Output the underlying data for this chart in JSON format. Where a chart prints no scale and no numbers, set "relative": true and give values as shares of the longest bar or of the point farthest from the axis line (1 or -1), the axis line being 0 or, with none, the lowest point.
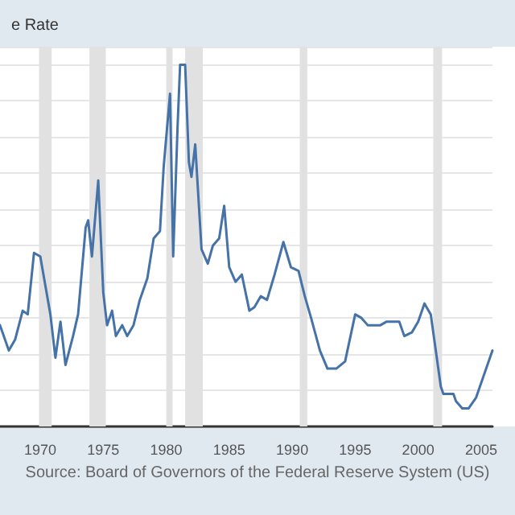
{
  "chart_data": {
    "type": "line",
    "title": "e Rate",
    "annotations": [
      "Source: Board of Governors of the Federal Reserve System (US)"
    ],
    "relative": true,
    "grid": "y",
    "marker": "none",
    "line_style": "solid",
    "xlim": [
      1966.8,
      2005.9
    ],
    "xticks": [
      1970,
      1975,
      1980,
      1985,
      1990,
      1995,
      2000,
      2005
    ],
    "bands": [
      {
        "axis": "x",
        "from": 1969.9,
        "to": 1970.9,
        "color": "#e1e1e1"
      },
      {
        "axis": "x",
        "from": 1973.9,
        "to": 1975.2,
        "color": "#e1e1e1"
      },
      {
        "axis": "x",
        "from": 1980.0,
        "to": 1980.5,
        "color": "#e1e1e1"
      },
      {
        "axis": "x",
        "from": 1981.5,
        "to": 1982.9,
        "color": "#e1e1e1"
      },
      {
        "axis": "x",
        "from": 1990.6,
        "to": 1991.2,
        "color": "#e1e1e1"
      },
      {
        "axis": "x",
        "from": 2001.2,
        "to": 2001.9,
        "color": "#e1e1e1"
      }
    ],
    "series": [
      {
        "color": "#4572a7",
        "x": [
          1966.8,
          1967.5,
          1968.0,
          1968.6,
          1969.0,
          1969.5,
          1970.0,
          1970.3,
          1970.8,
          1971.2,
          1971.6,
          1972.0,
          1972.6,
          1973.0,
          1973.6,
          1973.8,
          1974.1,
          1974.6,
          1975.0,
          1975.3,
          1975.7,
          1976.0,
          1976.5,
          1976.9,
          1977.4,
          1977.9,
          1978.5,
          1979.0,
          1979.5,
          1979.8,
          1980.3,
          1980.55,
          1980.9,
          1981.1,
          1981.5,
          1981.8,
          1982.0,
          1982.3,
          1982.8,
          1983.3,
          1983.7,
          1984.2,
          1984.6,
          1985.0,
          1985.5,
          1986.0,
          1986.6,
          1987.0,
          1987.5,
          1988.0,
          1988.6,
          1989.3,
          1989.9,
          1990.5,
          1991.0,
          1991.5,
          1992.2,
          1992.8,
          1993.5,
          1994.2,
          1995.0,
          1995.5,
          1996.0,
          1997.0,
          1997.5,
          1998.5,
          1998.9,
          1999.5,
          2000.0,
          2000.5,
          2001.0,
          2001.8,
          2002.0,
          2002.8,
          2003.0,
          2003.5,
          2004.0,
          2004.6,
          2005.5,
          2005.9
        ],
        "values": [
          0.28,
          0.21,
          0.24,
          0.32,
          0.31,
          0.48,
          0.47,
          0.41,
          0.31,
          0.19,
          0.29,
          0.17,
          0.25,
          0.31,
          0.55,
          0.57,
          0.47,
          0.68,
          0.37,
          0.28,
          0.32,
          0.25,
          0.28,
          0.25,
          0.28,
          0.35,
          0.41,
          0.52,
          0.54,
          0.72,
          0.92,
          0.47,
          0.83,
          1,
          1,
          0.73,
          0.69,
          0.78,
          0.49,
          0.45,
          0.5,
          0.52,
          0.61,
          0.44,
          0.4,
          0.42,
          0.32,
          0.33,
          0.36,
          0.35,
          0.42,
          0.51,
          0.44,
          0.43,
          0.36,
          0.3,
          0.21,
          0.16,
          0.16,
          0.18,
          0.31,
          0.3,
          0.28,
          0.28,
          0.29,
          0.29,
          0.25,
          0.26,
          0.29,
          0.34,
          0.31,
          0.11,
          0.09,
          0.09,
          0.07,
          0.05,
          0.05,
          0.08,
          0.17,
          0.21
        ]
      }
    ]
  }
}
